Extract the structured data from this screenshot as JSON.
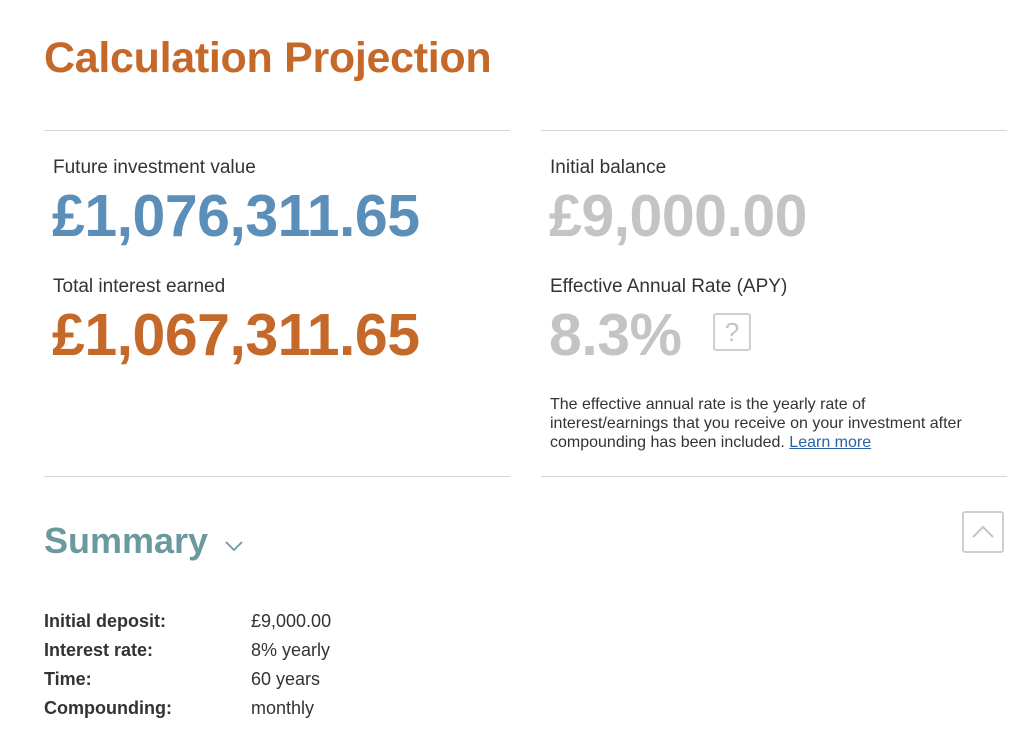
{
  "page": {
    "title": "Calculation Projection"
  },
  "results": {
    "future_value": {
      "label": "Future investment value",
      "value": "£1,076,311.65"
    },
    "total_interest": {
      "label": "Total interest earned",
      "value": "£1,067,311.65"
    },
    "initial_balance": {
      "label": "Initial balance",
      "value": "£9,000.00"
    },
    "apy": {
      "label": "Effective Annual Rate (APY)",
      "value": "8.3%",
      "help_icon": "question-mark",
      "description": "The effective annual rate is the yearly rate of interest/earnings that you receive on your investment after compounding has been included.",
      "learn_more": "Learn more"
    }
  },
  "summary": {
    "heading": "Summary",
    "toggle_icon": "chevron-down",
    "scroll_top_icon": "chevron-up",
    "rows": [
      {
        "key": "Initial deposit:",
        "value": "£9,000.00"
      },
      {
        "key": "Interest rate:",
        "value": "8% yearly"
      },
      {
        "key": "Time:",
        "value": "60 years"
      },
      {
        "key": "Compounding:",
        "value": "monthly"
      }
    ]
  },
  "colors": {
    "accent_orange": "#c5692a",
    "accent_blue": "#5b8fb9",
    "muted_grey": "#c4c4c4",
    "summary_teal": "#6b9a9e",
    "link_blue": "#2b62a6"
  }
}
